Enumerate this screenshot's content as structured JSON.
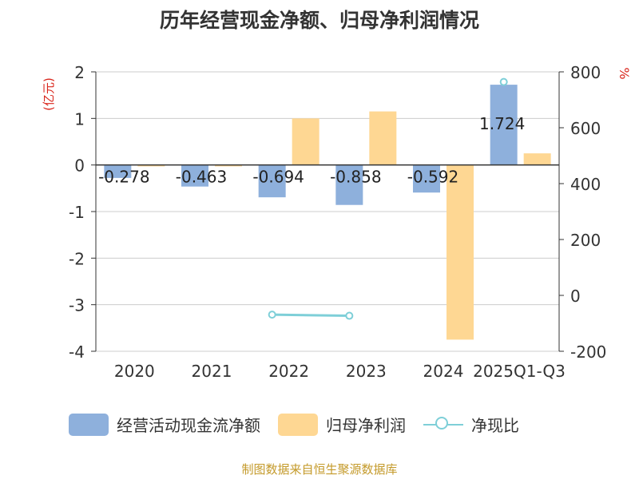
{
  "chart_data": {
    "type": "bar",
    "title": "历年经营现金净额、归母净利润情况",
    "categories": [
      "2020",
      "2021",
      "2022",
      "2023",
      "2024",
      "2025Q1-Q3"
    ],
    "y_left_label": "(亿元)",
    "y_right_label": "%",
    "y_left_ticks": [
      "2",
      "1",
      "0",
      "-1",
      "-2",
      "-3",
      "-4"
    ],
    "y_right_ticks": [
      "800",
      "600",
      "400",
      "200",
      "0",
      "-200"
    ],
    "y_left_range": [
      -4,
      2
    ],
    "y_right_range": [
      -200,
      800
    ],
    "series": [
      {
        "name": "经营活动现金流净额",
        "type": "bar",
        "axis": "left",
        "color": "#8eb0dc",
        "values": [
          -0.278,
          -0.463,
          -0.694,
          -0.858,
          -0.592,
          1.724
        ],
        "labels": [
          "-0.278",
          "-0.463",
          "-0.694",
          "-0.858",
          "-0.592",
          "1.724"
        ]
      },
      {
        "name": "归母净利润",
        "type": "bar",
        "axis": "left",
        "color": "#fed793",
        "values": [
          -0.03,
          -0.03,
          1.0,
          1.15,
          -3.75,
          0.25
        ]
      },
      {
        "name": "净现比",
        "type": "line",
        "axis": "right",
        "color": "#7ecfd8",
        "values": [
          null,
          null,
          -69,
          -73,
          null,
          764
        ]
      }
    ]
  },
  "source": "制图数据来自恒生聚源数据库"
}
